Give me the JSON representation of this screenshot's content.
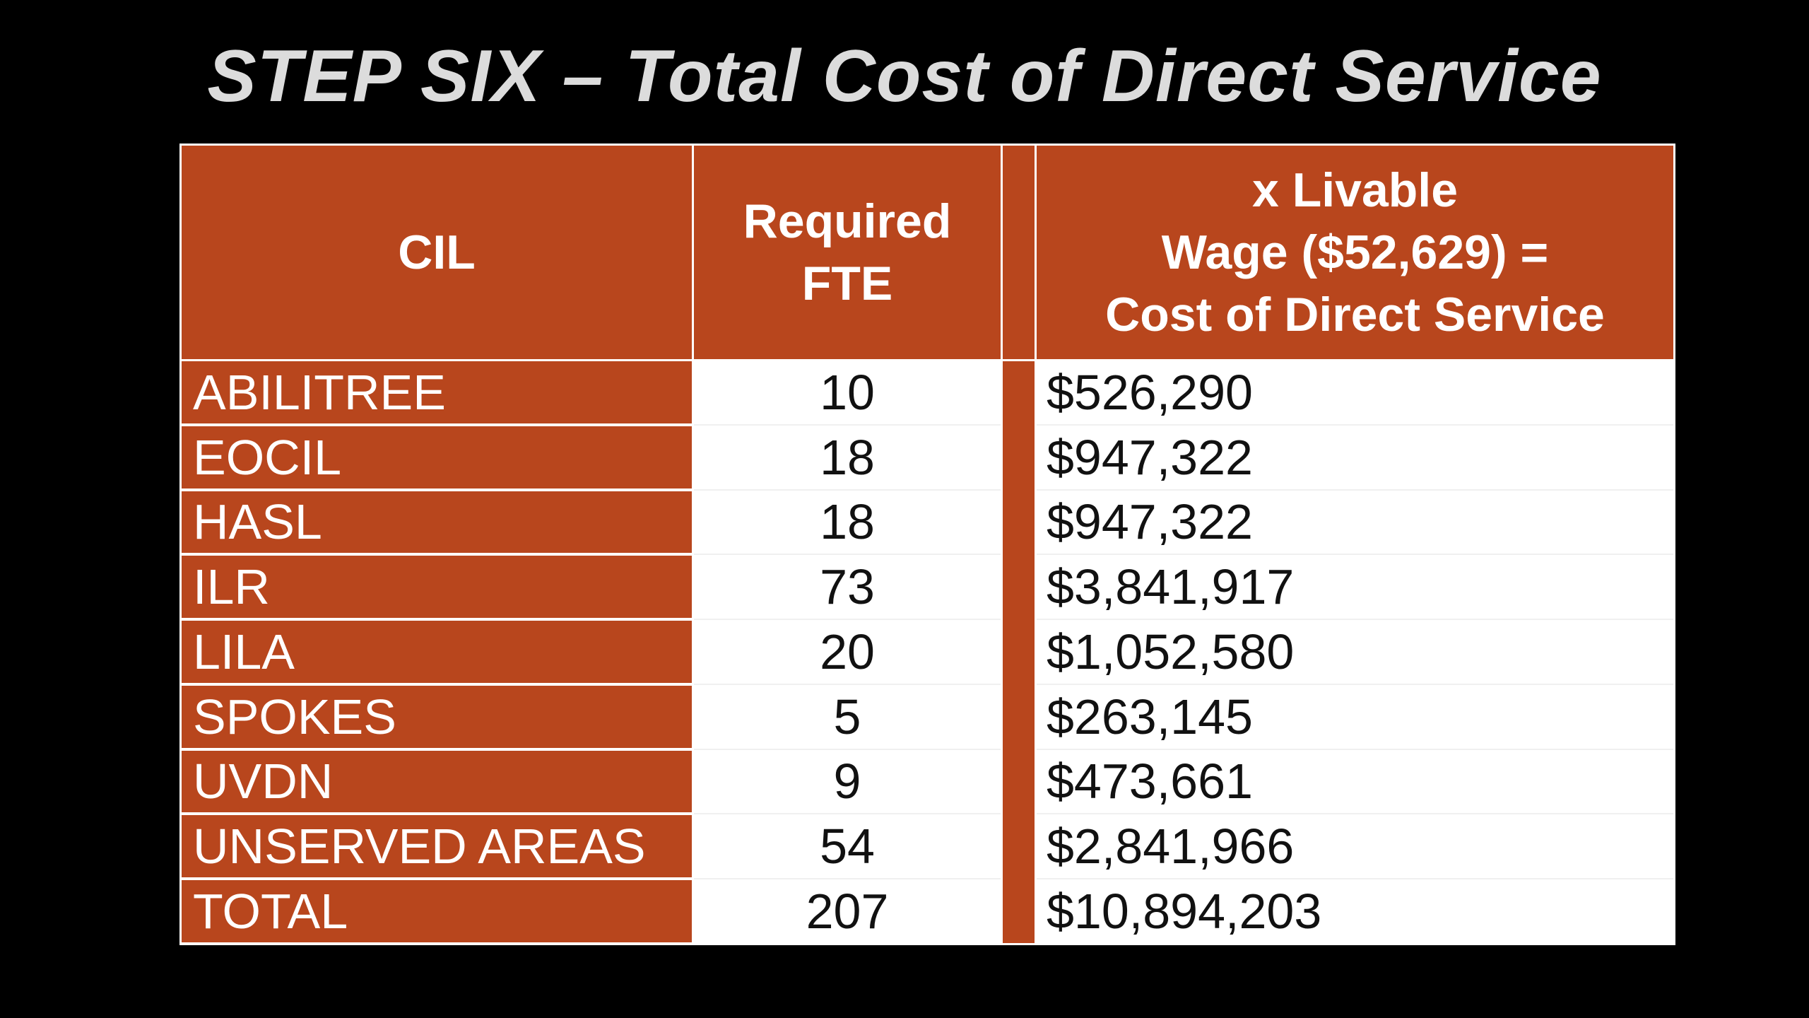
{
  "title": "STEP SIX – Total Cost of Direct Service",
  "colors": {
    "background": "#000000",
    "accent": "#b8461d",
    "title_text": "#dcdcdc"
  },
  "table": {
    "headers": {
      "cil": "CIL",
      "fte": "Required\nFTE",
      "cost": "x Livable\nWage ($52,629) =\nCost of Direct Service"
    },
    "rows": [
      {
        "cil": "ABILITREE",
        "fte": "10",
        "cost": "$526,290"
      },
      {
        "cil": "EOCIL",
        "fte": "18",
        "cost": "$947,322"
      },
      {
        "cil": "HASL",
        "fte": "18",
        "cost": "$947,322"
      },
      {
        "cil": "ILR",
        "fte": "73",
        "cost": "$3,841,917"
      },
      {
        "cil": "LILA",
        "fte": "20",
        "cost": "$1,052,580"
      },
      {
        "cil": "SPOKES",
        "fte": "5",
        "cost": "$263,145"
      },
      {
        "cil": "UVDN",
        "fte": "9",
        "cost": "$473,661"
      },
      {
        "cil": "UNSERVED AREAS",
        "fte": "54",
        "cost": "$2,841,966"
      },
      {
        "cil": "TOTAL",
        "fte": "207",
        "cost": "$10,894,203"
      }
    ]
  }
}
